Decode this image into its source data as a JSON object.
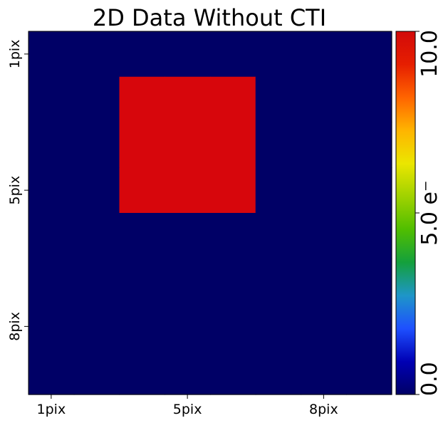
{
  "chart_data": {
    "type": "heatmap",
    "title": "2D Data Without CTI",
    "x_ticks": [
      {
        "label": "1pix",
        "col": 1
      },
      {
        "label": "5pix",
        "col": 4
      },
      {
        "label": "8pix",
        "col": 7
      }
    ],
    "y_ticks": [
      {
        "label": "1pix",
        "row": 1
      },
      {
        "label": "5pix",
        "row": 4
      },
      {
        "label": "8pix",
        "row": 7
      }
    ],
    "grid_shape": [
      8,
      8
    ],
    "values": [
      [
        0,
        0,
        0,
        0,
        0,
        0,
        0,
        0
      ],
      [
        0,
        0,
        10,
        10,
        10,
        0,
        0,
        0
      ],
      [
        0,
        0,
        10,
        10,
        10,
        0,
        0,
        0
      ],
      [
        0,
        0,
        10,
        10,
        10,
        0,
        0,
        0
      ],
      [
        0,
        0,
        0,
        0,
        0,
        0,
        0,
        0
      ],
      [
        0,
        0,
        0,
        0,
        0,
        0,
        0,
        0
      ],
      [
        0,
        0,
        0,
        0,
        0,
        0,
        0,
        0
      ],
      [
        0,
        0,
        0,
        0,
        0,
        0,
        0,
        0
      ]
    ],
    "colorbar": {
      "min": 0.0,
      "max": 10.0,
      "ticks": [
        {
          "value": 0.0,
          "label": "0.0"
        },
        {
          "value": 5.0,
          "label": "5.0 e⁻"
        },
        {
          "value": 10.0,
          "label": "10.0"
        }
      ],
      "colormap": [
        "#000066",
        "#0000b4",
        "#1e50ff",
        "#1e96c8",
        "#14a03c",
        "#50be00",
        "#a0d200",
        "#ebe600",
        "#ffb400",
        "#ff6400",
        "#e61e00",
        "#d20a0a"
      ]
    },
    "colors": {
      "low": "#000066",
      "high": "#d7060c"
    },
    "grid": false
  }
}
